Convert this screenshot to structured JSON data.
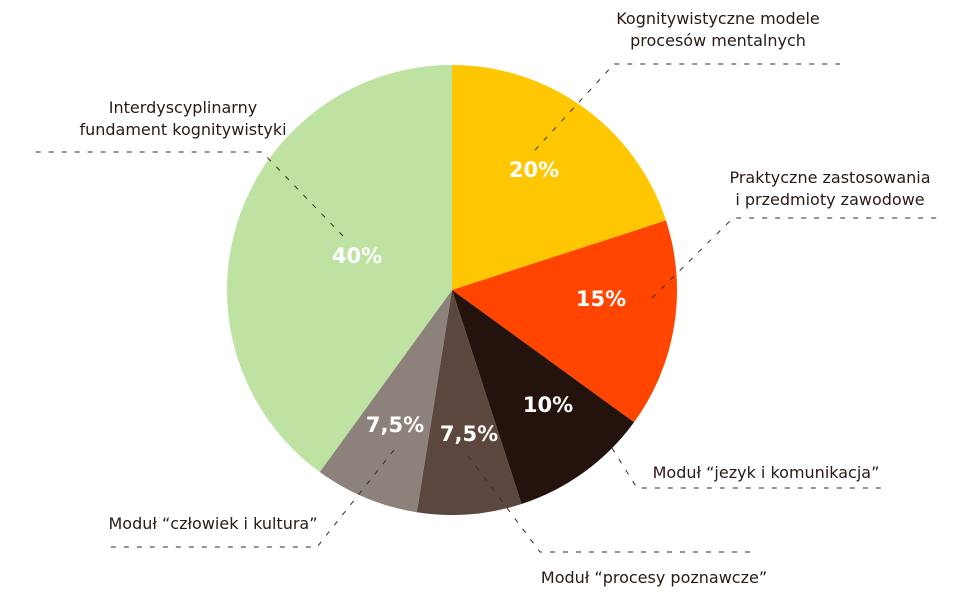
{
  "chart_data": {
    "type": "pie",
    "title": "",
    "slices": [
      {
        "label_lines": [
          "Kognitywistyczne modele",
          "procesów mentalnych"
        ],
        "value": 20,
        "value_label": "20%",
        "color": "#fec702"
      },
      {
        "label_lines": [
          "Praktyczne zastosowania",
          "i przedmioty zawodowe"
        ],
        "value": 15,
        "value_label": "15%",
        "color": "#ff4500"
      },
      {
        "label_lines": [
          "Moduł “jezyk i komunikacja”"
        ],
        "value": 10,
        "value_label": "10%",
        "color": "#24130c"
      },
      {
        "label_lines": [
          "Moduł “procesy poznawcze”"
        ],
        "value": 7.5,
        "value_label": "7,5%",
        "color": "#5c473e"
      },
      {
        "label_lines": [
          "Moduł “człowiek i kultura”"
        ],
        "value": 7.5,
        "value_label": "7,5%",
        "color": "#8d817c"
      },
      {
        "label_lines": [
          "Interdyscyplinarny",
          "fundament kognitywistyki"
        ],
        "value": 40,
        "value_label": "40%",
        "color": "#bee2a2"
      }
    ],
    "start": "top",
    "direction": "clockwise",
    "legend": "none"
  }
}
